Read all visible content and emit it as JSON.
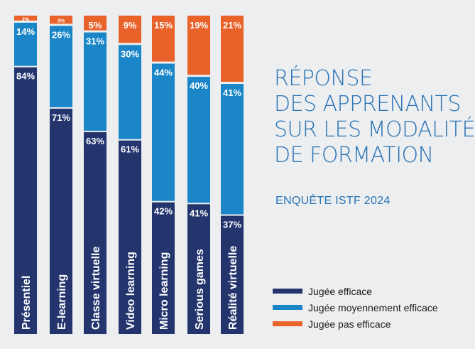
{
  "title_lines": [
    "RÉPONSE",
    "DES APPRENANTS",
    "SUR LES MODALITÉS",
    "DE FORMATION"
  ],
  "subtitle": "ENQUÊTE ISTF 2024",
  "colors": {
    "background": "#eceeef",
    "efficace": "#24356e",
    "moyennement": "#1a86c8",
    "pas": "#e8622a",
    "title": "#2a73b6"
  },
  "chart_data": {
    "type": "bar",
    "stacked": true,
    "orientation": "vertical",
    "categories": [
      "Présentiel",
      "E-learning",
      "Classe virtuelle",
      "Video learning",
      "Micro learning",
      "Serious games",
      "Réalité virtuelle"
    ],
    "series": [
      {
        "name": "Jugée efficace",
        "color": "#24356e",
        "values": [
          84,
          71,
          63,
          61,
          42,
          41,
          37
        ]
      },
      {
        "name": "Jugée moyennement efficace",
        "color": "#1a86c8",
        "values": [
          14,
          26,
          31,
          30,
          44,
          40,
          41
        ]
      },
      {
        "name": "Jugée pas efficace",
        "color": "#e8622a",
        "values": [
          2,
          3,
          5,
          9,
          15,
          19,
          21
        ]
      }
    ],
    "value_suffix": "%",
    "legend_position": "bottom-right",
    "grid": false
  }
}
